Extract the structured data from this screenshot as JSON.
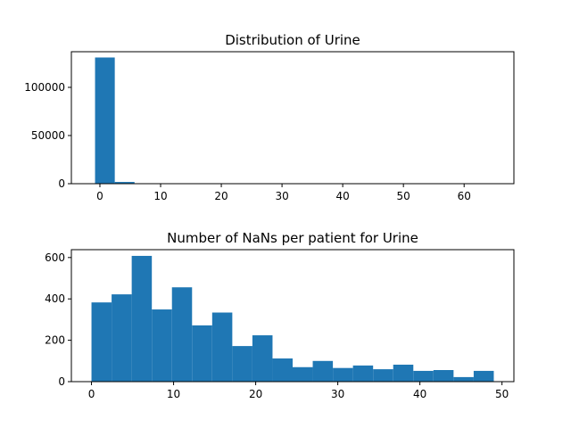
{
  "chart_data": [
    {
      "type": "bar",
      "title": "Distribution of Urine",
      "xlabel": "",
      "ylabel": "",
      "color": "#1f77b4",
      "xlim": [
        -4.7,
        68.2
      ],
      "ylim": [
        0,
        137000
      ],
      "xticks": [
        0,
        10,
        20,
        30,
        40,
        50,
        60
      ],
      "yticks": [
        0,
        50000,
        100000
      ],
      "bins": [
        {
          "x0": -0.8,
          "x1": 2.45,
          "value": 131000
        },
        {
          "x0": 2.45,
          "x1": 5.7,
          "value": 1800
        },
        {
          "x0": 5.7,
          "x1": 8.95,
          "value": 250
        },
        {
          "x0": 8.95,
          "x1": 12.2,
          "value": 90
        },
        {
          "x0": 12.2,
          "x1": 15.45,
          "value": 40
        },
        {
          "x0": 15.45,
          "x1": 18.7,
          "value": 20
        },
        {
          "x0": 18.7,
          "x1": 21.95,
          "value": 10
        },
        {
          "x0": 21.95,
          "x1": 25.2,
          "value": 5
        },
        {
          "x0": 25.2,
          "x1": 28.45,
          "value": 3
        },
        {
          "x0": 28.45,
          "x1": 31.7,
          "value": 2
        },
        {
          "x0": 31.7,
          "x1": 34.95,
          "value": 1
        },
        {
          "x0": 34.95,
          "x1": 38.2,
          "value": 1
        },
        {
          "x0": 38.2,
          "x1": 41.45,
          "value": 0
        },
        {
          "x0": 41.45,
          "x1": 44.7,
          "value": 0
        },
        {
          "x0": 44.7,
          "x1": 47.95,
          "value": 0
        },
        {
          "x0": 47.95,
          "x1": 51.2,
          "value": 0
        },
        {
          "x0": 51.2,
          "x1": 54.45,
          "value": 0
        },
        {
          "x0": 54.45,
          "x1": 57.7,
          "value": 0
        },
        {
          "x0": 57.7,
          "x1": 60.95,
          "value": 0
        },
        {
          "x0": 60.95,
          "x1": 64.2,
          "value": 1
        }
      ]
    },
    {
      "type": "bar",
      "title": "Number of NaNs per patient for Urine",
      "xlabel": "",
      "ylabel": "",
      "color": "#1f77b4",
      "xlim": [
        -2.45,
        51.45
      ],
      "ylim": [
        0,
        638
      ],
      "xticks": [
        0,
        10,
        20,
        30,
        40,
        50
      ],
      "yticks": [
        0,
        200,
        400,
        600
      ],
      "bins": [
        {
          "x0": 0.0,
          "x1": 2.45,
          "value": 383
        },
        {
          "x0": 2.45,
          "x1": 4.9,
          "value": 422
        },
        {
          "x0": 4.9,
          "x1": 7.35,
          "value": 608
        },
        {
          "x0": 7.35,
          "x1": 9.8,
          "value": 349
        },
        {
          "x0": 9.8,
          "x1": 12.25,
          "value": 456
        },
        {
          "x0": 12.25,
          "x1": 14.7,
          "value": 272
        },
        {
          "x0": 14.7,
          "x1": 17.15,
          "value": 334
        },
        {
          "x0": 17.15,
          "x1": 19.6,
          "value": 172
        },
        {
          "x0": 19.6,
          "x1": 22.05,
          "value": 224
        },
        {
          "x0": 22.05,
          "x1": 24.5,
          "value": 112
        },
        {
          "x0": 24.5,
          "x1": 26.95,
          "value": 70
        },
        {
          "x0": 26.95,
          "x1": 29.4,
          "value": 100
        },
        {
          "x0": 29.4,
          "x1": 31.85,
          "value": 66
        },
        {
          "x0": 31.85,
          "x1": 34.3,
          "value": 78
        },
        {
          "x0": 34.3,
          "x1": 36.75,
          "value": 60
        },
        {
          "x0": 36.75,
          "x1": 39.2,
          "value": 82
        },
        {
          "x0": 39.2,
          "x1": 41.65,
          "value": 52
        },
        {
          "x0": 41.65,
          "x1": 44.1,
          "value": 56
        },
        {
          "x0": 44.1,
          "x1": 46.55,
          "value": 22
        },
        {
          "x0": 46.55,
          "x1": 49.0,
          "value": 52
        }
      ]
    }
  ]
}
